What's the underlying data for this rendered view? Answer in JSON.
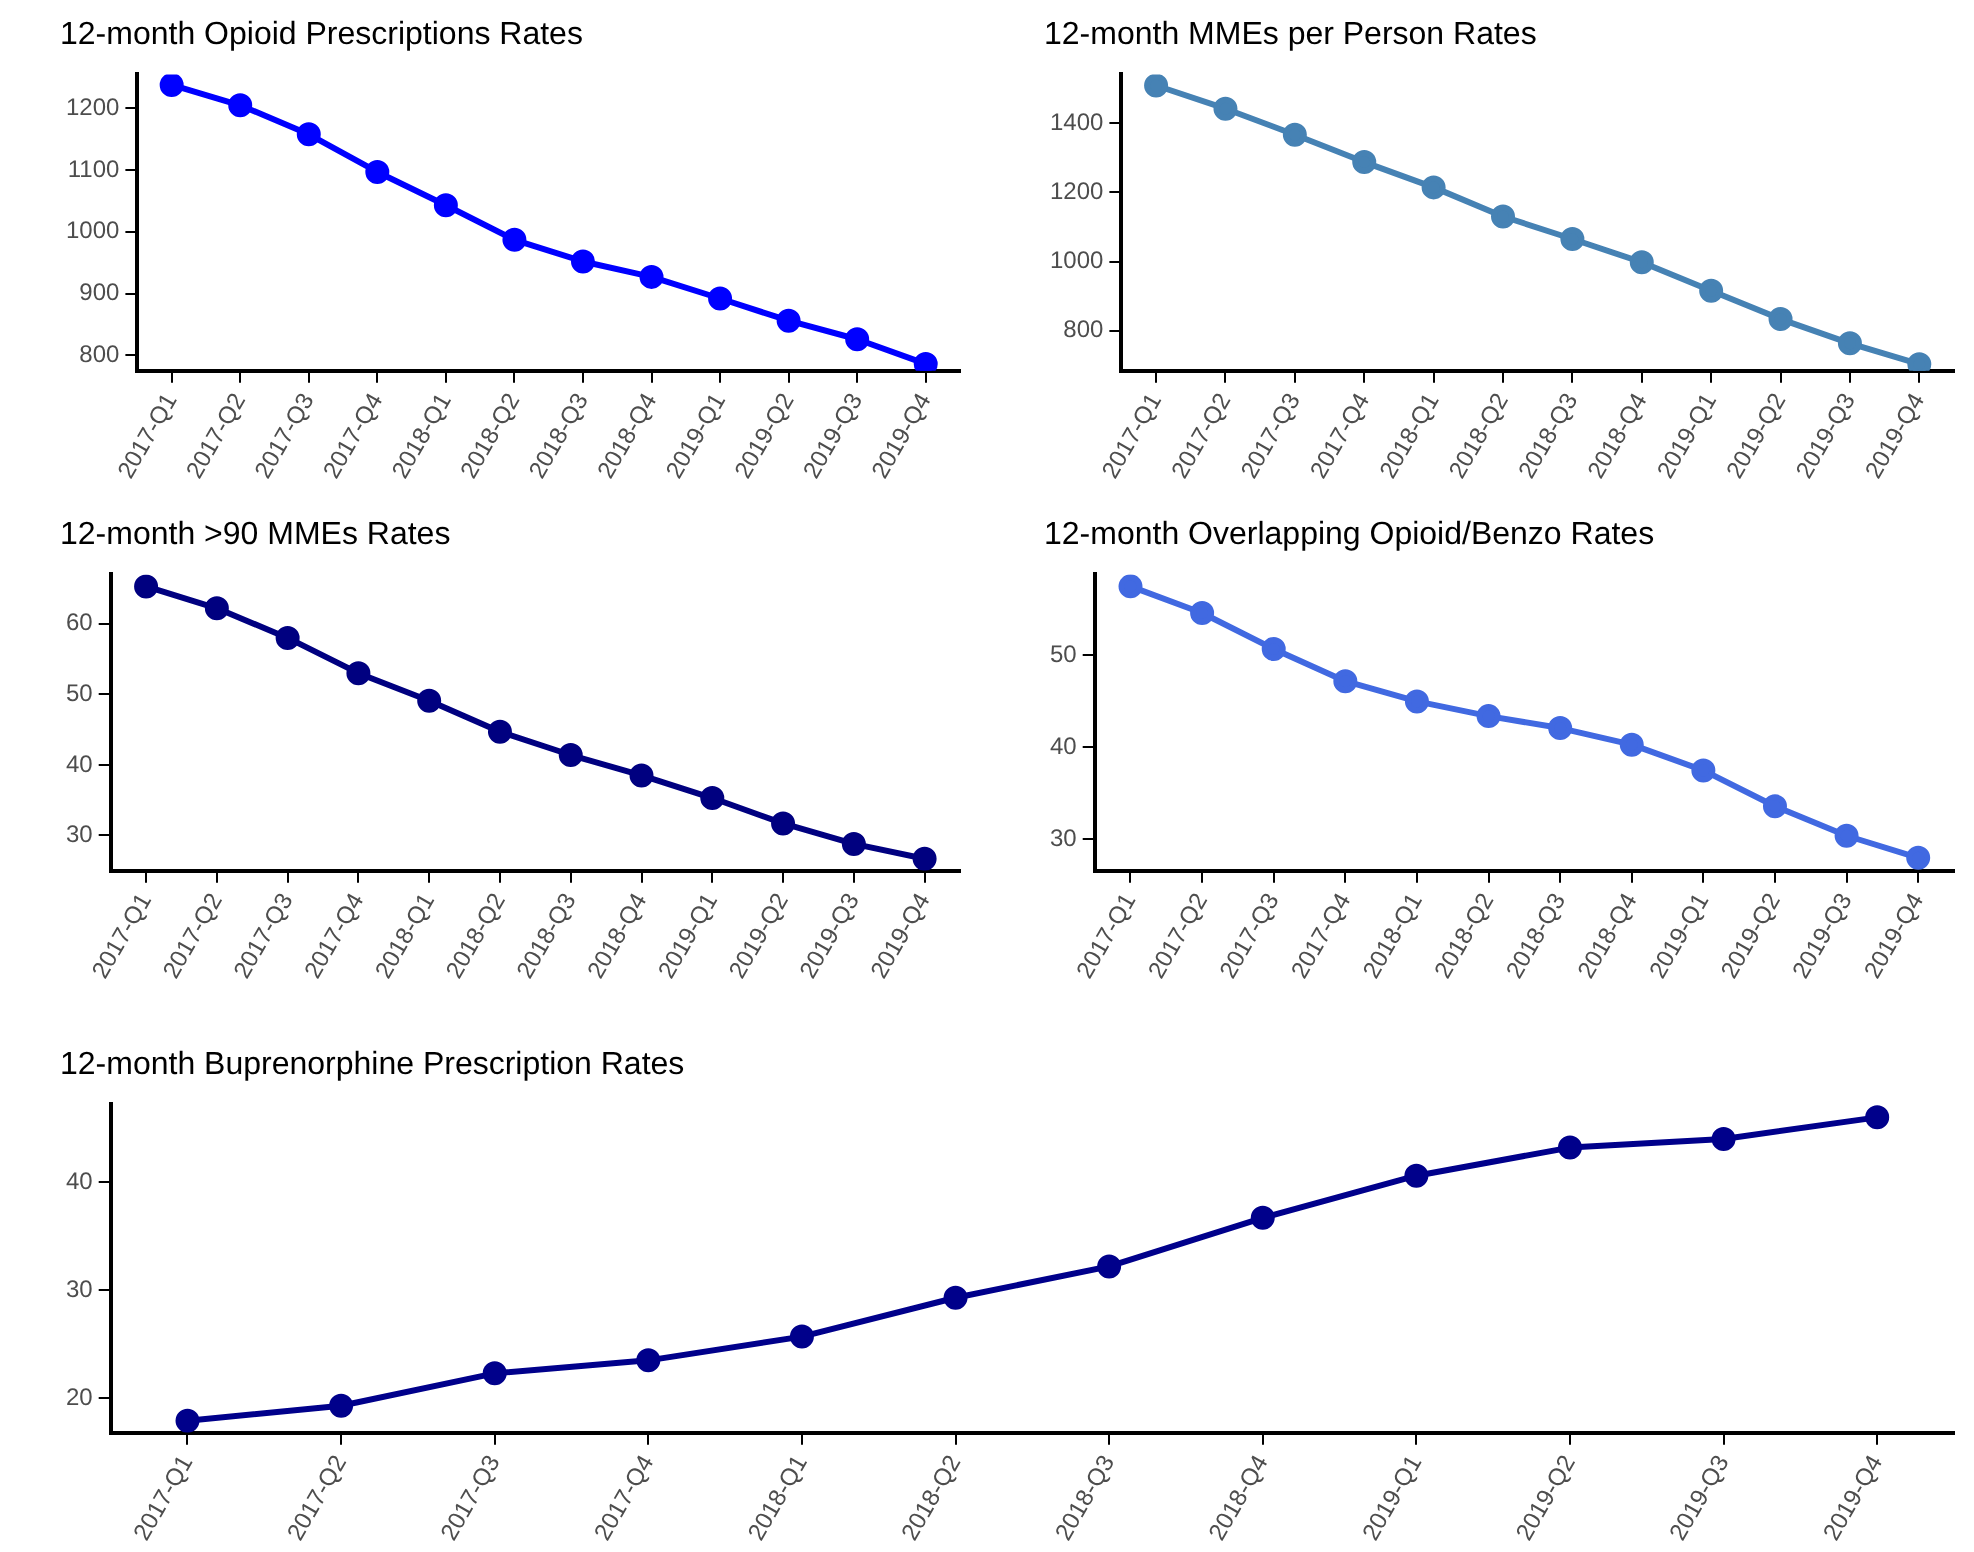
{
  "chart_data": [
    {
      "type": "line",
      "title": "12-month Opioid Prescriptions Rates",
      "categories": [
        "2017-Q1",
        "2017-Q2",
        "2017-Q3",
        "2017-Q4",
        "2018-Q1",
        "2018-Q2",
        "2018-Q3",
        "2018-Q4",
        "2019-Q1",
        "2019-Q2",
        "2019-Q3",
        "2019-Q4"
      ],
      "series": [
        {
          "color": "#0000ff",
          "values": [
            1238,
            1205,
            1158,
            1097,
            1043,
            987,
            952,
            927,
            892,
            856,
            826,
            786
          ]
        }
      ],
      "ylim": [
        775,
        1255
      ],
      "yticks": [
        800,
        900,
        1000,
        1100,
        1200
      ],
      "marker": "circle",
      "grid": false,
      "legend": false
    },
    {
      "type": "line",
      "title": "12-month MMEs per Person Rates",
      "categories": [
        "2017-Q1",
        "2017-Q2",
        "2017-Q3",
        "2017-Q4",
        "2018-Q1",
        "2018-Q2",
        "2018-Q3",
        "2018-Q4",
        "2019-Q1",
        "2019-Q2",
        "2019-Q3",
        "2019-Q4"
      ],
      "series": [
        {
          "color": "#4682b4",
          "values": [
            1508,
            1441,
            1366,
            1287,
            1214,
            1130,
            1065,
            998,
            916,
            834,
            764,
            704
          ]
        }
      ],
      "ylim": [
        685,
        1540
      ],
      "yticks": [
        800,
        1000,
        1200,
        1400
      ],
      "marker": "circle",
      "grid": false,
      "legend": false
    },
    {
      "type": "line",
      "title": "12-month >90 MMEs Rates",
      "categories": [
        "2017-Q1",
        "2017-Q2",
        "2017-Q3",
        "2017-Q4",
        "2018-Q1",
        "2018-Q2",
        "2018-Q3",
        "2018-Q4",
        "2019-Q1",
        "2019-Q2",
        "2019-Q3",
        "2019-Q4"
      ],
      "series": [
        {
          "color": "#000080",
          "values": [
            65.3,
            62.2,
            58.0,
            53.0,
            49.1,
            44.7,
            41.4,
            38.5,
            35.3,
            31.7,
            28.8,
            26.7
          ]
        }
      ],
      "ylim": [
        25,
        67
      ],
      "yticks": [
        30,
        40,
        50,
        60
      ],
      "marker": "circle",
      "grid": false,
      "legend": false
    },
    {
      "type": "line",
      "title": "12-month Overlapping Opioid/Benzo Rates",
      "categories": [
        "2017-Q1",
        "2017-Q2",
        "2017-Q3",
        "2017-Q4",
        "2018-Q1",
        "2018-Q2",
        "2018-Q3",
        "2018-Q4",
        "2019-Q1",
        "2019-Q2",
        "2019-Q3",
        "2019-Q4"
      ],
      "series": [
        {
          "color": "#4169e1",
          "values": [
            57.5,
            54.6,
            50.7,
            47.2,
            45.0,
            43.4,
            42.1,
            40.3,
            37.5,
            33.6,
            30.4,
            28.0
          ]
        }
      ],
      "ylim": [
        26.6,
        58.8
      ],
      "yticks": [
        30,
        40,
        50
      ],
      "marker": "circle",
      "grid": false,
      "legend": false
    },
    {
      "type": "line",
      "title": "12-month Buprenorphine Prescription Rates",
      "categories": [
        "2017-Q1",
        "2017-Q2",
        "2017-Q3",
        "2017-Q4",
        "2018-Q1",
        "2018-Q2",
        "2018-Q3",
        "2018-Q4",
        "2019-Q1",
        "2019-Q2",
        "2019-Q3",
        "2019-Q4"
      ],
      "series": [
        {
          "color": "#00008b",
          "values": [
            17.9,
            19.3,
            22.3,
            23.5,
            25.7,
            29.3,
            32.2,
            36.7,
            40.6,
            43.2,
            44.0,
            46.0
          ]
        }
      ],
      "ylim": [
        16.8,
        47.2
      ],
      "yticks": [
        20,
        30,
        40
      ],
      "marker": "circle",
      "grid": false,
      "legend": false
    }
  ]
}
